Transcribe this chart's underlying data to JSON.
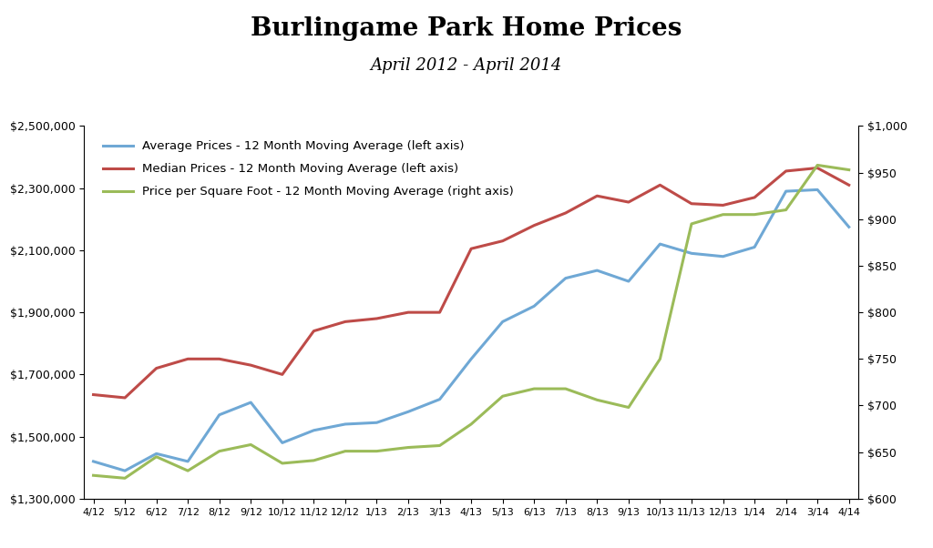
{
  "title": "Burlingame Park Home Prices",
  "subtitle": "April 2012 - April 2014",
  "title_fontsize": 20,
  "subtitle_fontsize": 13,
  "background_color": "#ffffff",
  "x_labels": [
    "4/12",
    "5/12",
    "6/12",
    "7/12",
    "8/12",
    "9/12",
    "10/12",
    "11/12",
    "12/12",
    "1/13",
    "2/13",
    "3/13",
    "4/13",
    "5/13",
    "6/13",
    "7/13",
    "8/13",
    "9/13",
    "10/13",
    "11/13",
    "12/13",
    "1/14",
    "2/14",
    "3/14",
    "4/14"
  ],
  "avg_prices": [
    1420000,
    1390000,
    1445000,
    1420000,
    1570000,
    1610000,
    1480000,
    1520000,
    1540000,
    1545000,
    1580000,
    1620000,
    1750000,
    1870000,
    1920000,
    2010000,
    2035000,
    2000000,
    2120000,
    2090000,
    2080000,
    2110000,
    2290000,
    2295000,
    2175000
  ],
  "median_prices": [
    1635000,
    1625000,
    1720000,
    1750000,
    1750000,
    1730000,
    1700000,
    1840000,
    1870000,
    1880000,
    1900000,
    1900000,
    2105000,
    2130000,
    2180000,
    2220000,
    2275000,
    2255000,
    2310000,
    2250000,
    2245000,
    2270000,
    2355000,
    2365000,
    2310000
  ],
  "price_sqft": [
    625,
    622,
    645,
    630,
    651,
    658,
    638,
    641,
    651,
    651,
    655,
    657,
    680,
    710,
    718,
    718,
    706,
    698,
    750,
    895,
    905,
    905,
    910,
    958,
    953
  ],
  "avg_color": "#6FA8D5",
  "median_color": "#BE4B48",
  "sqft_color": "#9BBB59",
  "line_width": 2.2,
  "left_ylim": [
    1300000,
    2500000
  ],
  "right_ylim": [
    600,
    1000
  ],
  "left_yticks": [
    1300000,
    1500000,
    1700000,
    1900000,
    2100000,
    2300000,
    2500000
  ],
  "right_yticks": [
    600,
    650,
    700,
    750,
    800,
    850,
    900,
    950,
    1000
  ],
  "legend_labels": [
    "Average Prices - 12 Month Moving Average (left axis)",
    "Median Prices - 12 Month Moving Average (left axis)",
    "Price per Square Foot - 12 Month Moving Average (right axis)"
  ]
}
